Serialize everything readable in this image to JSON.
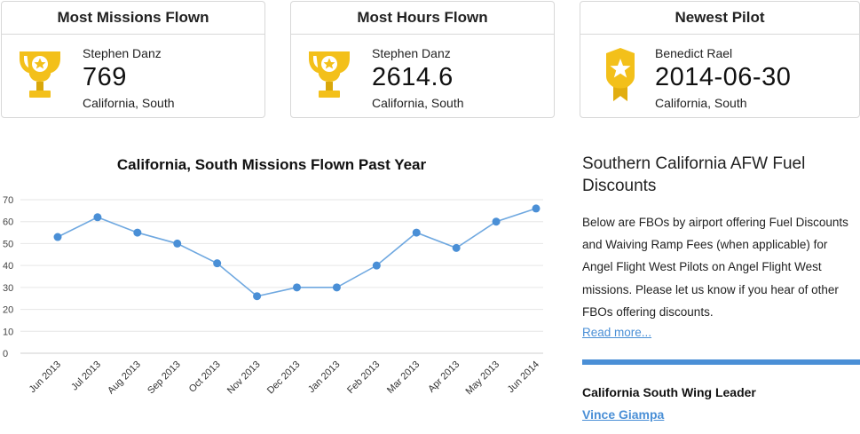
{
  "stats": {
    "missions": {
      "title": "Most Missions Flown",
      "icon": "trophy-icon",
      "name": "Stephen Danz",
      "value": "769",
      "location": "California, South"
    },
    "hours": {
      "title": "Most Hours Flown",
      "icon": "trophy-icon",
      "name": "Stephen Danz",
      "value": "2614.6",
      "location": "California, South"
    },
    "newest": {
      "title": "Newest Pilot",
      "icon": "ribbon-badge-icon",
      "name": "Benedict Rael",
      "value": "2014-06-30",
      "location": "California, South"
    }
  },
  "colors": {
    "accent": "#4a8fd6",
    "line": "#6fa8e0",
    "gold": "#f3c01a",
    "gold_dark": "#d9a70a"
  },
  "chart_data": {
    "type": "line",
    "title": "California, South Missions Flown Past Year",
    "categories": [
      "Jun 2013",
      "Jul 2013",
      "Aug 2013",
      "Sep 2013",
      "Oct 2013",
      "Nov 2013",
      "Dec 2013",
      "Jan 2013",
      "Feb 2013",
      "Mar 2013",
      "Apr 2013",
      "May 2013",
      "Jun 2014"
    ],
    "series": [
      {
        "values": [
          53,
          62,
          55,
          50,
          41,
          26,
          30,
          30,
          40,
          55,
          48,
          60,
          66
        ]
      }
    ],
    "ylim": [
      0,
      70
    ],
    "yticks": [
      0,
      10,
      20,
      30,
      40,
      50,
      60,
      70
    ],
    "grid": true,
    "xlabel": "",
    "ylabel": ""
  },
  "sidebar": {
    "title": "Southern California AFW Fuel Discounts",
    "body": "Below are FBOs by airport offering Fuel Discounts and Waiving Ramp Fees (when applicable) for Angel Flight West Pilots on Angel Flight West missions. Please let us know if you hear of other FBOs offering discounts.",
    "read_more": "Read more...",
    "leader_label": "California South Wing Leader",
    "leader_name": "Vince Giampa"
  }
}
